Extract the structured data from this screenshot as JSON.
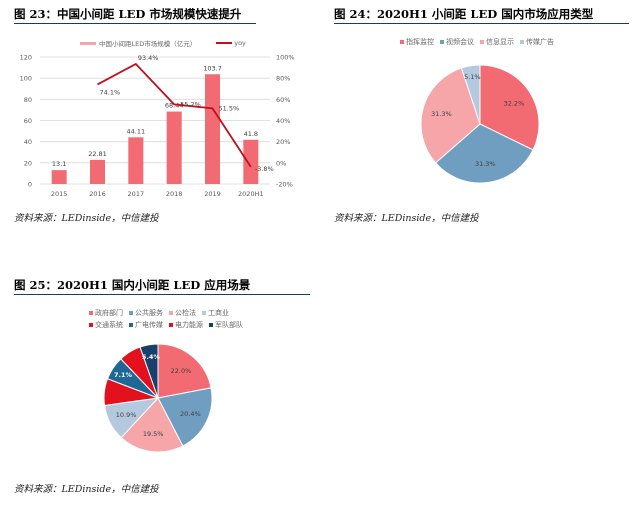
{
  "fig23": {
    "title": "图 23：中国小间距 LED 市场规模快速提升",
    "source": "资料来源：LEDinside，中信建投",
    "legend": {
      "bar": "中国小间距LED市场规模（亿元）",
      "line": "yoy"
    }
  },
  "fig24": {
    "title": "图 24：2020H1 小间距 LED 国内市场应用类型",
    "source": "资料来源：LEDinside，中信建投",
    "legend": [
      "指挥监控",
      "视频会议",
      "信息显示",
      "传媒广告"
    ]
  },
  "fig25": {
    "title": "图 25：2020H1 国内小间距 LED 应用场景",
    "source": "资料来源：LEDinside，中信建投",
    "legend_row1": [
      "政府部门",
      "公共服务",
      "公检法",
      "工商业"
    ],
    "legend_row2": [
      "交通系统",
      "广电传媒",
      "电力能源",
      "军队部队"
    ]
  },
  "chart_data": [
    {
      "type": "bar",
      "title": "中国小间距 LED 市场规模快速提升",
      "categories": [
        "2015",
        "2016",
        "2017",
        "2018",
        "2019",
        "2020H1"
      ],
      "series": [
        {
          "name": "中国小间距LED市场规模（亿元）",
          "type": "bar",
          "axis": "left",
          "color": "#f26b72",
          "values": [
            13.1,
            22.81,
            44.11,
            68.44,
            103.7,
            41.8
          ]
        },
        {
          "name": "yoy",
          "type": "line",
          "axis": "right",
          "color": "#c0101e",
          "values": [
            null,
            74.1,
            93.4,
            55.2,
            51.5,
            -3.8
          ],
          "unit": "%"
        }
      ],
      "left_axis": {
        "ticks": [
          0,
          20,
          40,
          60,
          80,
          100,
          120
        ],
        "ylim": [
          0,
          120
        ]
      },
      "right_axis": {
        "ticks": [
          "-20%",
          "0%",
          "20%",
          "40%",
          "60%",
          "80%",
          "100%"
        ],
        "ylim": [
          -20,
          100
        ]
      },
      "grid": true,
      "legend_position": "top"
    },
    {
      "type": "pie",
      "title": "2020H1 小间距 LED 国内市场应用类型",
      "labels": [
        "指挥监控",
        "视频会议",
        "信息显示",
        "传媒广告"
      ],
      "values": [
        32.2,
        31.3,
        31.3,
        5.1
      ],
      "colors": [
        "#f26b72",
        "#6f9ec0",
        "#f6a5a9",
        "#b5c9de"
      ],
      "legend_position": "top"
    },
    {
      "type": "pie",
      "title": "2020H1 国内小间距 LED 应用场景",
      "labels": [
        "政府部门",
        "公共服务",
        "公检法",
        "工商业",
        "交通系统",
        "广电传媒",
        "电力能源",
        "军队部队"
      ],
      "values": [
        22.0,
        20.4,
        19.5,
        10.9,
        8.0,
        7.1,
        6.7,
        5.4
      ],
      "value_labels": [
        "22.0%",
        "20.4%",
        "19.5%",
        "10.9%",
        "",
        "7.1%",
        "",
        "5.4%"
      ],
      "colors": [
        "#f26b72",
        "#6f9ec0",
        "#f6a5a9",
        "#b5c9de",
        "#e3101e",
        "#1f6795",
        "#e3101e",
        "#17406d"
      ],
      "legend_position": "top"
    }
  ]
}
